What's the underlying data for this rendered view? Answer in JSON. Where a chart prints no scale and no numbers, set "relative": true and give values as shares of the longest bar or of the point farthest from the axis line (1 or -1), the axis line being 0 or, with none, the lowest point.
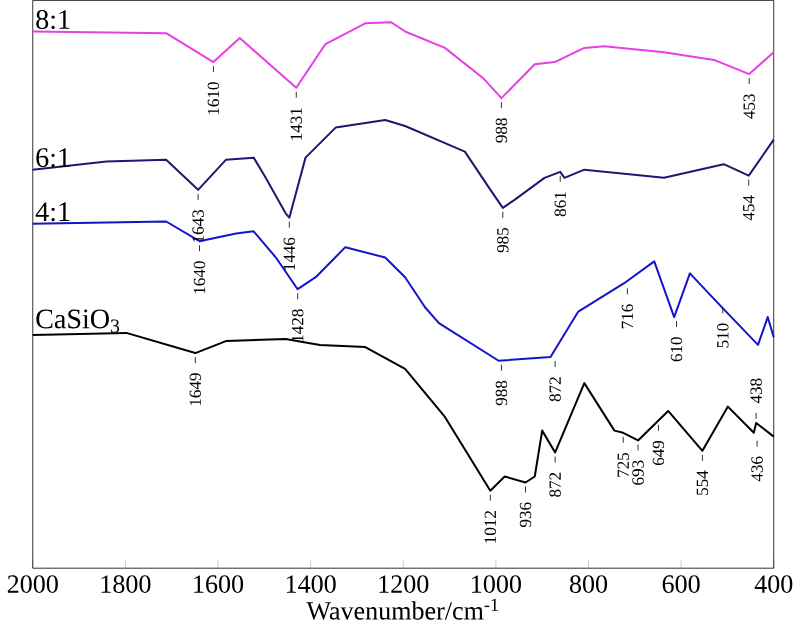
{
  "chart_data": {
    "type": "line",
    "relative": true,
    "xlabel": "Wavenumber/cm$^{-1}$",
    "xlim": [
      2000,
      400
    ],
    "xticks": [
      2000,
      1800,
      1600,
      1400,
      1200,
      1000,
      800,
      600,
      400
    ],
    "series": [
      {
        "name": "8:1",
        "color": "#e83ee8",
        "x": [
          2000,
          1712,
          1610,
          1553,
          1431,
          1368,
          1282,
          1226,
          1196,
          1110,
          1028,
          988,
          916,
          873,
          809,
          766,
          637,
          529,
          453,
          400
        ],
        "values": [
          0.983,
          0.98,
          0.927,
          0.971,
          0.88,
          0.96,
          0.998,
          1.0,
          0.983,
          0.953,
          0.898,
          0.861,
          0.923,
          0.927,
          0.953,
          0.956,
          0.945,
          0.931,
          0.905,
          0.945
        ]
      },
      {
        "name": "6:1",
        "color": "#1a1a6e",
        "x": [
          2000,
          1841,
          1712,
          1643,
          1583,
          1523,
          1497,
          1454,
          1446,
          1411,
          1346,
          1239,
          1196,
          1067,
          1015,
          985,
          959,
          895,
          861,
          852,
          809,
          637,
          508,
          454,
          400
        ],
        "values": [
          0.73,
          0.745,
          0.748,
          0.693,
          0.748,
          0.752,
          0.715,
          0.65,
          0.642,
          0.752,
          0.807,
          0.821,
          0.81,
          0.763,
          0.697,
          0.66,
          0.675,
          0.715,
          0.726,
          0.715,
          0.73,
          0.715,
          0.74,
          0.719,
          0.785
        ]
      },
      {
        "name": "4:1",
        "color": "#1414c8",
        "x": [
          2000,
          1712,
          1640,
          1561,
          1523,
          1475,
          1428,
          1389,
          1325,
          1239,
          1196,
          1153,
          1123,
          994,
          882,
          822,
          723,
          658,
          615,
          581,
          520,
          434,
          413,
          400
        ],
        "values": [
          0.631,
          0.635,
          0.599,
          0.613,
          0.617,
          0.569,
          0.511,
          0.533,
          0.588,
          0.569,
          0.533,
          0.478,
          0.449,
          0.38,
          0.387,
          0.47,
          0.522,
          0.562,
          0.46,
          0.54,
          0.485,
          0.409,
          0.46,
          0.423
        ]
      },
      {
        "name": "CaSiO$_{3}$",
        "color": "#000000",
        "x": [
          2000,
          1798,
          1649,
          1583,
          1454,
          1380,
          1282,
          1196,
          1110,
          1012,
          981,
          936,
          916,
          900,
          872,
          809,
          744,
          725,
          693,
          628,
          554,
          499,
          443,
          438,
          400
        ],
        "values": [
          0.427,
          0.431,
          0.394,
          0.416,
          0.42,
          0.409,
          0.405,
          0.365,
          0.277,
          0.142,
          0.168,
          0.157,
          0.168,
          0.252,
          0.212,
          0.339,
          0.252,
          0.248,
          0.234,
          0.288,
          0.215,
          0.296,
          0.248,
          0.266,
          0.241
        ]
      }
    ],
    "annotations": [
      {
        "text": "1610",
        "x": 1610,
        "y": 0.927
      },
      {
        "text": "1431",
        "x": 1431,
        "y": 0.88
      },
      {
        "text": "988",
        "x": 988,
        "y": 0.861
      },
      {
        "text": "453",
        "x": 453,
        "y": 0.905
      },
      {
        "text": "1643",
        "x": 1643,
        "y": 0.693
      },
      {
        "text": "1446",
        "x": 1446,
        "y": 0.642
      },
      {
        "text": "985",
        "x": 985,
        "y": 0.66
      },
      {
        "text": "861",
        "x": 861,
        "y": 0.726
      },
      {
        "text": "454",
        "x": 454,
        "y": 0.719
      },
      {
        "text": "1640",
        "x": 1640,
        "y": 0.599
      },
      {
        "text": "1428",
        "x": 1428,
        "y": 0.511
      },
      {
        "text": "988",
        "x": 988,
        "y": 0.38
      },
      {
        "text": "872",
        "x": 872,
        "y": 0.387
      },
      {
        "text": "716",
        "x": 716,
        "y": 0.52
      },
      {
        "text": "610",
        "x": 610,
        "y": 0.46
      },
      {
        "text": "510",
        "x": 510,
        "y": 0.485
      },
      {
        "text": "1649",
        "x": 1649,
        "y": 0.394
      },
      {
        "text": "1012",
        "x": 1012,
        "y": 0.142
      },
      {
        "text": "936",
        "x": 936,
        "y": 0.157
      },
      {
        "text": "872",
        "x": 872,
        "y": 0.212
      },
      {
        "text": "725",
        "x": 725,
        "y": 0.248
      },
      {
        "text": "693",
        "x": 693,
        "y": 0.234
      },
      {
        "text": "649",
        "x": 649,
        "y": 0.27
      },
      {
        "text": "554",
        "x": 554,
        "y": 0.215
      },
      {
        "text": "438",
        "x": 438,
        "y": 0.266
      },
      {
        "text": "436",
        "x": 436,
        "y": 0.241
      }
    ]
  }
}
